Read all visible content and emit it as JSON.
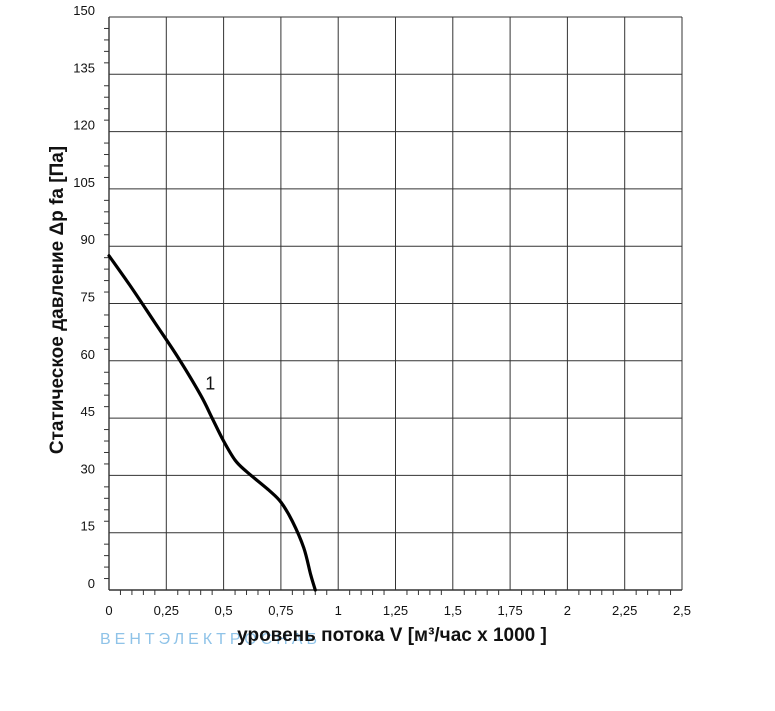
{
  "chart_data": {
    "type": "line",
    "xlabel": "уровень потока  V [м³/час x 1000 ]",
    "ylabel": "Статическое давление  Δp fa [Па]",
    "xlim": [
      0,
      2.5
    ],
    "ylim": [
      0,
      150
    ],
    "x_ticks": [
      "0",
      "0,25",
      "0,5",
      "0,75",
      "1",
      "1,25",
      "1,5",
      "1,75",
      "2",
      "2,25",
      "2,5"
    ],
    "y_ticks": [
      "0",
      "15",
      "30",
      "45",
      "60",
      "75",
      "90",
      "105",
      "120",
      "135",
      "150"
    ],
    "grid": true,
    "series": [
      {
        "name": "1",
        "color": "#000000",
        "points": [
          [
            0.0,
            87.5
          ],
          [
            0.1,
            79
          ],
          [
            0.2,
            70
          ],
          [
            0.3,
            61
          ],
          [
            0.4,
            51
          ],
          [
            0.45,
            45
          ],
          [
            0.5,
            39
          ],
          [
            0.55,
            34
          ],
          [
            0.6,
            31
          ],
          [
            0.7,
            26
          ],
          [
            0.75,
            23
          ],
          [
            0.8,
            18
          ],
          [
            0.85,
            11
          ],
          [
            0.88,
            4
          ],
          [
            0.9,
            0
          ]
        ]
      }
    ],
    "watermark": "ВЕНТЭЛЕКТРОСНАБ"
  }
}
